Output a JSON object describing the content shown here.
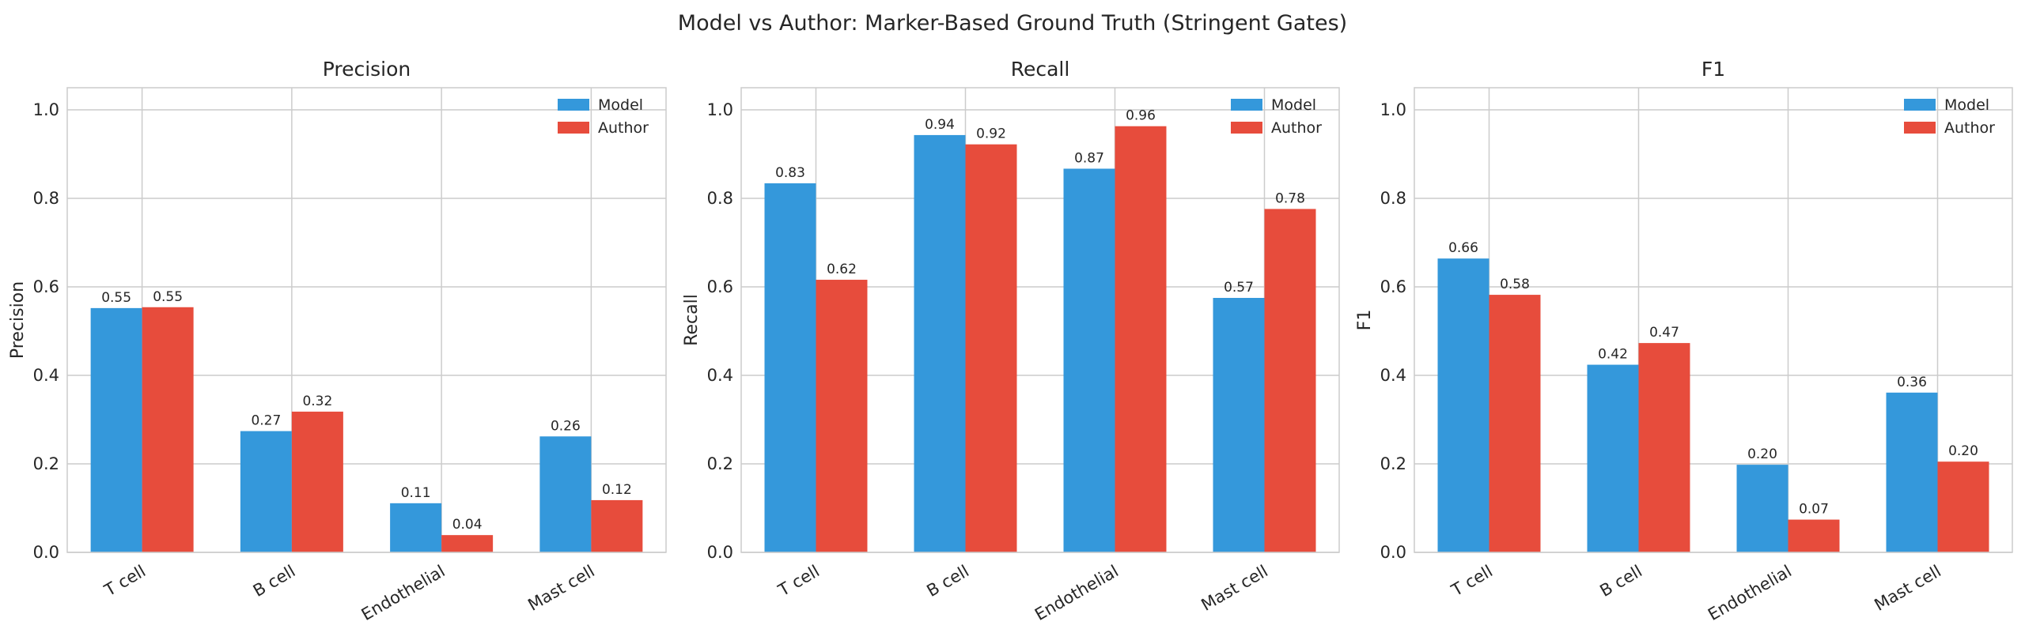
{
  "figure": {
    "title": "Model vs Author: Marker-Based Ground Truth (Stringent Gates)"
  },
  "colors": {
    "model": "#3498db",
    "author": "#e74c3c",
    "grid": "#cccccc",
    "axes": "#cccccc"
  },
  "chart_data": [
    {
      "type": "bar",
      "title": "Precision",
      "xlabel": "",
      "ylabel": "Precision",
      "categories": [
        "T cell",
        "B cell",
        "Endothelial",
        "Mast cell"
      ],
      "ylim": [
        0,
        1.05
      ],
      "yticks": [
        "0.0",
        "0.2",
        "0.4",
        "0.6",
        "0.8",
        "1.0"
      ],
      "grid": true,
      "legend": "top-right",
      "series": [
        {
          "name": "Model",
          "color": "#3498db",
          "values": [
            0.552,
            0.274,
            0.111,
            0.262
          ],
          "labels": [
            "0.55",
            "0.27",
            "0.11",
            "0.26"
          ]
        },
        {
          "name": "Author",
          "color": "#e74c3c",
          "values": [
            0.554,
            0.318,
            0.039,
            0.118
          ],
          "labels": [
            "0.55",
            "0.32",
            "0.04",
            "0.12"
          ]
        }
      ]
    },
    {
      "type": "bar",
      "title": "Recall",
      "xlabel": "",
      "ylabel": "Recall",
      "categories": [
        "T cell",
        "B cell",
        "Endothelial",
        "Mast cell"
      ],
      "ylim": [
        0,
        1.05
      ],
      "yticks": [
        "0.0",
        "0.2",
        "0.4",
        "0.6",
        "0.8",
        "1.0"
      ],
      "grid": true,
      "legend": "top-right",
      "series": [
        {
          "name": "Model",
          "color": "#3498db",
          "values": [
            0.834,
            0.943,
            0.867,
            0.575
          ],
          "labels": [
            "0.83",
            "0.94",
            "0.87",
            "0.57"
          ]
        },
        {
          "name": "Author",
          "color": "#e74c3c",
          "values": [
            0.616,
            0.922,
            0.963,
            0.776
          ],
          "labels": [
            "0.62",
            "0.92",
            "0.96",
            "0.78"
          ]
        }
      ]
    },
    {
      "type": "bar",
      "title": "F1",
      "xlabel": "",
      "ylabel": "F1",
      "categories": [
        "T cell",
        "B cell",
        "Endothelial",
        "Mast cell"
      ],
      "ylim": [
        0,
        1.05
      ],
      "yticks": [
        "0.0",
        "0.2",
        "0.4",
        "0.6",
        "0.8",
        "1.0"
      ],
      "grid": true,
      "legend": "top-right",
      "series": [
        {
          "name": "Model",
          "color": "#3498db",
          "values": [
            0.664,
            0.424,
            0.198,
            0.361
          ],
          "labels": [
            "0.66",
            "0.42",
            "0.20",
            "0.36"
          ]
        },
        {
          "name": "Author",
          "color": "#e74c3c",
          "values": [
            0.582,
            0.473,
            0.074,
            0.205
          ],
          "labels": [
            "0.58",
            "0.47",
            "0.07",
            "0.20"
          ]
        }
      ]
    }
  ]
}
